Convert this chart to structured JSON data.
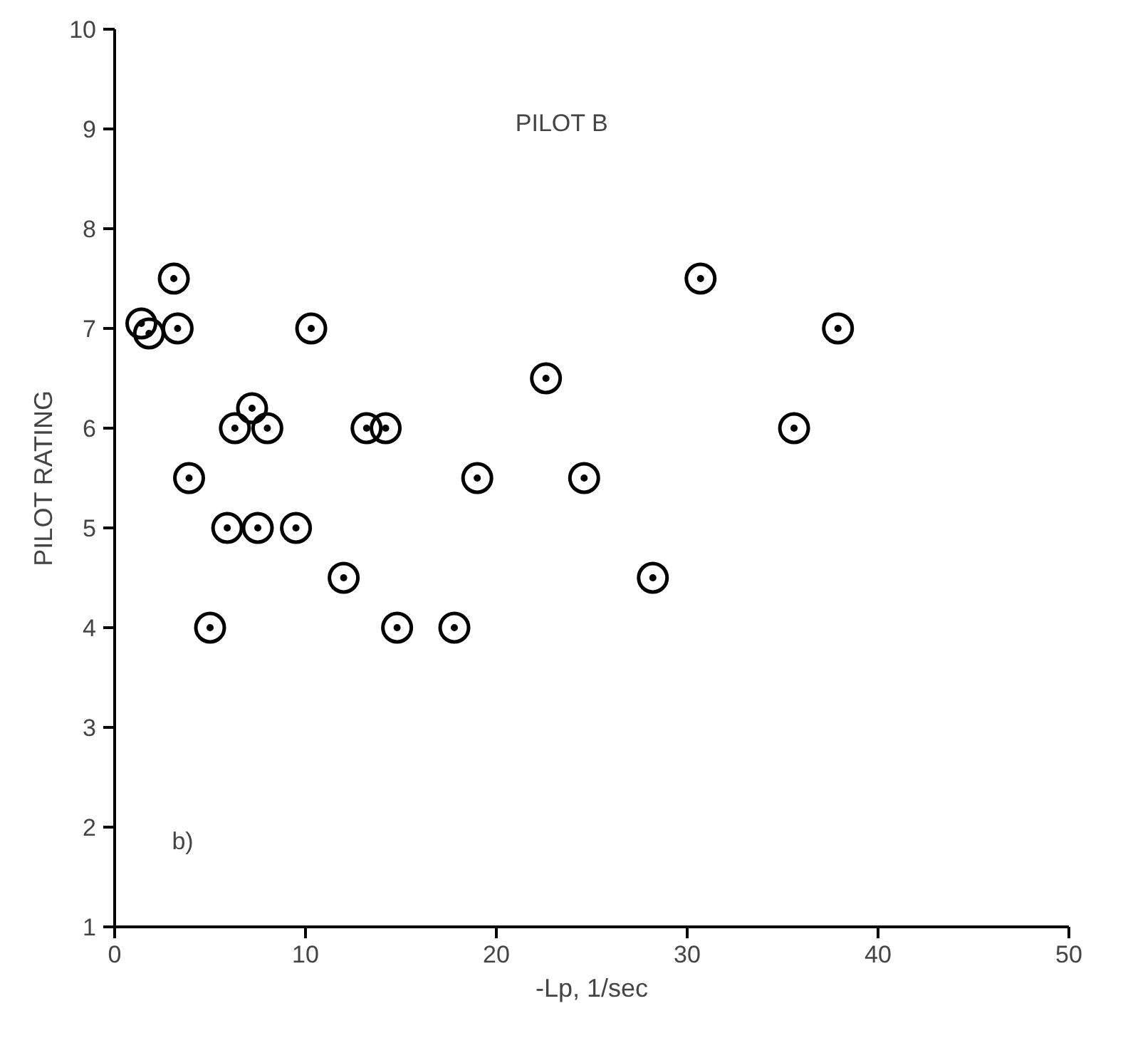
{
  "chart_data": {
    "type": "scatter",
    "xlabel": "-Lp, 1/sec",
    "ylabel": "PILOT RATING",
    "annotations": [
      "PILOT B",
      "b)"
    ],
    "x": [
      1.4,
      1.8,
      3.1,
      3.3,
      3.9,
      5.0,
      5.9,
      6.3,
      7.2,
      7.5,
      8.0,
      9.5,
      10.3,
      12.0,
      13.2,
      14.2,
      14.8,
      17.8,
      19.0,
      22.6,
      24.6,
      28.2,
      30.7,
      35.6,
      37.9
    ],
    "values": [
      7.05,
      6.95,
      7.5,
      7.0,
      5.5,
      4.0,
      5.0,
      6.0,
      6.2,
      5.0,
      6.0,
      5.0,
      7.0,
      4.5,
      6.0,
      6.0,
      4.0,
      4.0,
      5.5,
      6.5,
      5.5,
      4.5,
      7.5,
      6.0,
      7.0
    ],
    "color": "#000000",
    "marker": "circle",
    "grid": false,
    "xlim": [
      0,
      50
    ],
    "ylim": [
      1,
      10
    ],
    "xticks": [
      0,
      10,
      20,
      30,
      40,
      50
    ],
    "yticks": [
      1,
      2,
      3,
      4,
      5,
      6,
      7,
      8,
      9,
      10
    ]
  }
}
